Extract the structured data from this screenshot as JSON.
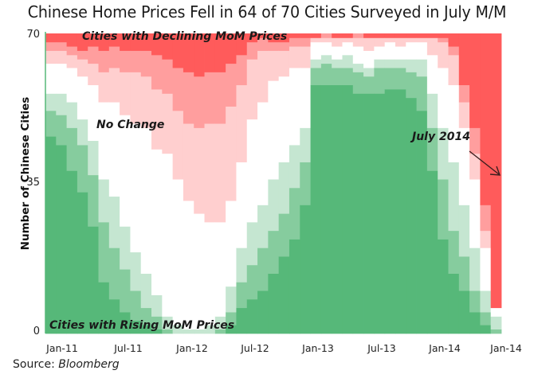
{
  "chart_data": {
    "type": "bar",
    "stacked": true,
    "title": "Chinese Home Prices Fell in 64 of 70 Cities Surveyed in July M/M",
    "xlabel": "",
    "ylabel": "Number of Chinese Cities",
    "ylim": [
      0,
      70
    ],
    "yticks": [
      "0",
      "35",
      "70"
    ],
    "xticks": [
      "Jan-11",
      "Jul-11",
      "Jan-12",
      "Jul-12",
      "Jan-13",
      "Jul-13",
      "Jan-14",
      "Jan-14"
    ],
    "grid": false,
    "legend": "none",
    "annotations": {
      "declining": "Cities with Declining MoM Prices",
      "no_change": "No Change",
      "rising": "Cities with Rising MoM Prices",
      "latest": "July 2014"
    },
    "source_label": "Source:",
    "source_name": "Bloomberg",
    "colors": {
      "rise_strong": "#56b879",
      "rise_mid": "#86cc9e",
      "rise_light": "#c5e6d1",
      "no_change": "#ffffff",
      "fall_light": "#ffcfcf",
      "fall_mid": "#ff9e9e",
      "fall_strong": "#ff5b5b"
    },
    "series_order": [
      "rise_strong",
      "rise_mid",
      "rise_light",
      "no_change",
      "fall_light",
      "fall_mid",
      "fall_strong"
    ],
    "months": [
      "2011-01",
      "2011-02",
      "2011-03",
      "2011-04",
      "2011-05",
      "2011-06",
      "2011-07",
      "2011-08",
      "2011-09",
      "2011-10",
      "2011-11",
      "2011-12",
      "2012-01",
      "2012-02",
      "2012-03",
      "2012-04",
      "2012-05",
      "2012-06",
      "2012-07",
      "2012-08",
      "2012-09",
      "2012-10",
      "2012-11",
      "2012-12",
      "2013-01",
      "2013-02",
      "2013-03",
      "2013-04",
      "2013-05",
      "2013-06",
      "2013-07",
      "2013-08",
      "2013-09",
      "2013-10",
      "2013-11",
      "2013-12",
      "2014-01",
      "2014-02",
      "2014-03",
      "2014-04",
      "2014-05",
      "2014-06",
      "2014-07"
    ],
    "series": [
      {
        "name": "rise_strong",
        "values": [
          46,
          44,
          38,
          33,
          25,
          12,
          8,
          5,
          3,
          2,
          1,
          0,
          0,
          0,
          0,
          0,
          0,
          2,
          6,
          8,
          10,
          14,
          18,
          22,
          30,
          58,
          58,
          58,
          58,
          56,
          56,
          56,
          57,
          57,
          55,
          52,
          38,
          22,
          14,
          10,
          5,
          2,
          0
        ]
      },
      {
        "name": "rise_mid",
        "values": [
          6,
          7,
          10,
          11,
          12,
          14,
          12,
          10,
          7,
          4,
          3,
          1,
          0,
          0,
          0,
          0,
          1,
          3,
          6,
          8,
          10,
          10,
          10,
          12,
          10,
          4,
          5,
          4,
          4,
          5,
          4,
          6,
          5,
          5,
          6,
          8,
          10,
          14,
          10,
          8,
          5,
          3,
          1
        ]
      },
      {
        "name": "rise_light",
        "values": [
          4,
          5,
          6,
          6,
          8,
          10,
          12,
          10,
          9,
          8,
          5,
          3,
          2,
          1,
          1,
          2,
          3,
          6,
          8,
          10,
          10,
          12,
          12,
          10,
          8,
          2,
          2,
          2,
          3,
          2,
          2,
          2,
          2,
          2,
          3,
          4,
          8,
          12,
          16,
          12,
          10,
          5,
          3
        ]
      },
      {
        "name": "no_change",
        "values": [
          7,
          7,
          8,
          10,
          13,
          18,
          22,
          26,
          30,
          34,
          34,
          38,
          34,
          30,
          27,
          24,
          22,
          20,
          20,
          24,
          24,
          23,
          20,
          18,
          14,
          4,
          3,
          3,
          3,
          4,
          4,
          3,
          4,
          3,
          4,
          4,
          9,
          14,
          18,
          18,
          16,
          10,
          2
        ]
      },
      {
        "name": "fall_light",
        "values": [
          3,
          3,
          3,
          4,
          5,
          7,
          8,
          10,
          12,
          12,
          14,
          14,
          16,
          18,
          20,
          23,
          23,
          22,
          18,
          14,
          12,
          7,
          6,
          5,
          5,
          1,
          1,
          2,
          1,
          2,
          3,
          2,
          1,
          2,
          1,
          1,
          4,
          6,
          7,
          6,
          6,
          4,
          0
        ]
      },
      {
        "name": "fall_mid",
        "values": [
          2,
          2,
          2,
          2,
          4,
          5,
          5,
          5,
          5,
          6,
          8,
          8,
          10,
          12,
          12,
          12,
          12,
          10,
          7,
          4,
          3,
          2,
          2,
          2,
          2,
          0,
          1,
          0,
          0,
          1,
          0,
          0,
          0,
          0,
          0,
          0,
          0,
          1,
          2,
          4,
          6,
          6,
          0
        ]
      },
      {
        "name": "fall_strong",
        "values": [
          2,
          2,
          3,
          4,
          3,
          4,
          3,
          4,
          4,
          4,
          5,
          6,
          8,
          9,
          10,
          9,
          9,
          7,
          5,
          2,
          1,
          2,
          2,
          1,
          1,
          1,
          0,
          1,
          1,
          0,
          1,
          1,
          1,
          1,
          1,
          1,
          1,
          1,
          3,
          12,
          22,
          40,
          64
        ]
      }
    ]
  }
}
